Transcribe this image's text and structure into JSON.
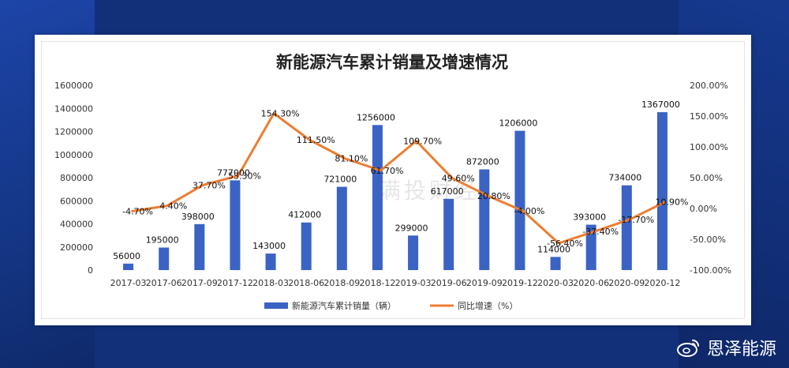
{
  "chart_data": {
    "type": "bar+line",
    "title": "新能源汽车累计销量及增速情况",
    "categories": [
      "2017-03",
      "2017-06",
      "2017-09",
      "2017-12",
      "2018-03",
      "2018-06",
      "2018-09",
      "2018-12",
      "2019-03",
      "2019-06",
      "2019-09",
      "2019-12",
      "2020-03",
      "2020-06",
      "2020-09",
      "2020-12"
    ],
    "series": [
      {
        "name": "新能源汽车累计销量（辆）",
        "type": "bar",
        "axis": "left",
        "color": "#3a63c4",
        "values": [
          56000,
          195000,
          398000,
          777000,
          143000,
          412000,
          721000,
          1256000,
          299000,
          617000,
          872000,
          1206000,
          114000,
          393000,
          734000,
          1367000
        ],
        "labels": [
          "56000",
          "195000",
          "398000",
          "777000",
          "143000",
          "412000",
          "721000",
          "1256000",
          "299000",
          "617000",
          "872000",
          "1206000",
          "114000",
          "393000",
          "734000",
          "1367000"
        ]
      },
      {
        "name": "同比增速（%）",
        "type": "line",
        "axis": "right",
        "color": "#ed7d31",
        "values": [
          -4.7,
          4.4,
          37.7,
          53.3,
          154.3,
          111.5,
          81.1,
          61.7,
          109.7,
          49.6,
          20.8,
          -4.0,
          -56.4,
          -37.4,
          -17.7,
          10.9
        ],
        "labels": [
          "-4.70%",
          "4.40%",
          "37.70%",
          "53.30%",
          "154.30%",
          "111.50%",
          "81.10%",
          "61.70%",
          "109.70%",
          "49.60%",
          "20.80%",
          "-4.00%",
          "-56.40%",
          "-37.40%",
          "-17.70%",
          "10.90%"
        ]
      }
    ],
    "y_left": {
      "min": 0,
      "max": 1600000,
      "ticks": [
        "0",
        "200000",
        "400000",
        "600000",
        "800000",
        "1000000",
        "1200000",
        "1400000",
        "1600000"
      ]
    },
    "y_right": {
      "min": -100,
      "max": 200,
      "ticks": [
        "-100.00%",
        "-50.00%",
        "0.00%",
        "50.00%",
        "100.00%",
        "150.00%",
        "200.00%"
      ]
    },
    "legend_position": "bottom",
    "grid": false
  },
  "watermark": "满投财经",
  "brand": {
    "name": "恩泽能源",
    "icon": "weibo-icon"
  }
}
